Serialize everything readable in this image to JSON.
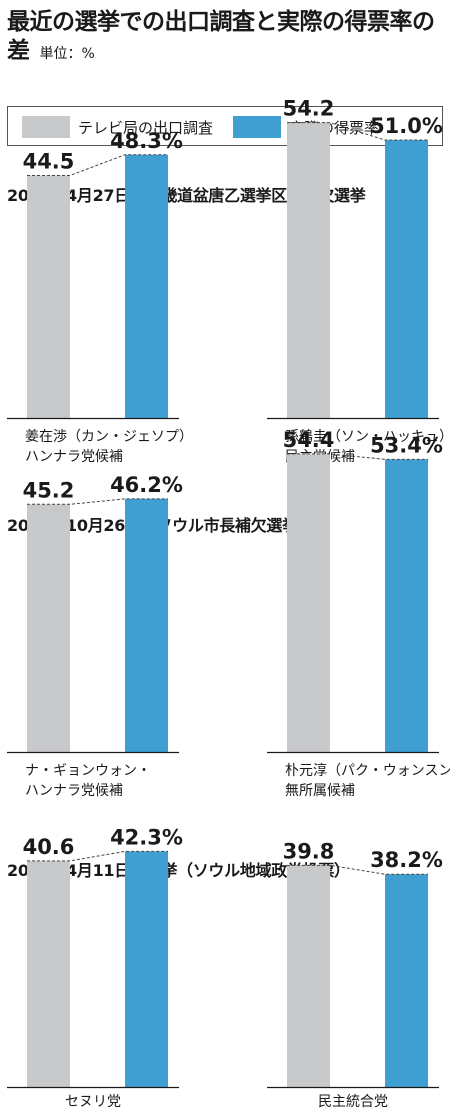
{
  "header": {
    "title": "最近の選挙での出口調査と実際の得票率の差",
    "unit": "単位：%"
  },
  "legend": [
    {
      "label": "テレビ局の出口調査",
      "color": "#c8c9cb"
    },
    {
      "label": "実際の得票率",
      "color": "#3f9fd3"
    }
  ],
  "colors": {
    "exit_poll": "#c8c9cb",
    "actual": "#3f9fd3",
    "axis": "#1a1a1a"
  },
  "chart_data": [
    {
      "type": "bar",
      "section_title": "2011年4月27日　京畿道盆唐乙選挙区の補欠選挙",
      "panels": [
        {
          "candidate": [
            "姜在渉（カン・ジェソプ）",
            "ハンナラ党候補"
          ],
          "categories": [
            "テレビ局の出口調査",
            "実際の得票率"
          ],
          "values": [
            44.5,
            48.3
          ],
          "labels": [
            "44.5",
            "48.3%"
          ]
        },
        {
          "candidate": [
            "孫鶴圭（ソン・ハッキュ）",
            "民主党候補"
          ],
          "categories": [
            "テレビ局の出口調査",
            "実際の得票率"
          ],
          "values": [
            54.2,
            51.0
          ],
          "labels": [
            "54.2",
            "51.0%"
          ]
        }
      ]
    },
    {
      "type": "bar",
      "section_title": "2011年10月26日　ソウル市長補欠選挙",
      "panels": [
        {
          "candidate": [
            "ナ・ギョンウォン・",
            "ハンナラ党候補"
          ],
          "categories": [
            "テレビ局の出口調査",
            "実際の得票率"
          ],
          "values": [
            45.2,
            46.2
          ],
          "labels": [
            "45.2",
            "46.2%"
          ]
        },
        {
          "candidate": [
            "朴元淳（パク・ウォンスン）",
            "無所属候補"
          ],
          "categories": [
            "テレビ局の出口調査",
            "実際の得票率"
          ],
          "values": [
            54.4,
            53.4
          ],
          "labels": [
            "54.4",
            "53.4%"
          ]
        }
      ]
    },
    {
      "type": "bar",
      "section_title": "2012年4月11日総選挙（ソウル地域政党投票）",
      "panels": [
        {
          "candidate": [
            "セヌリ党"
          ],
          "categories": [
            "テレビ局の出口調査",
            "実際の得票率"
          ],
          "values": [
            40.6,
            42.3
          ],
          "labels": [
            "40.6",
            "42.3%"
          ]
        },
        {
          "candidate": [
            "民主統合党"
          ],
          "categories": [
            "テレビ局の出口調査",
            "実際の得票率"
          ],
          "values": [
            39.8,
            38.2
          ],
          "labels": [
            "39.8",
            "38.2%"
          ]
        }
      ]
    }
  ]
}
